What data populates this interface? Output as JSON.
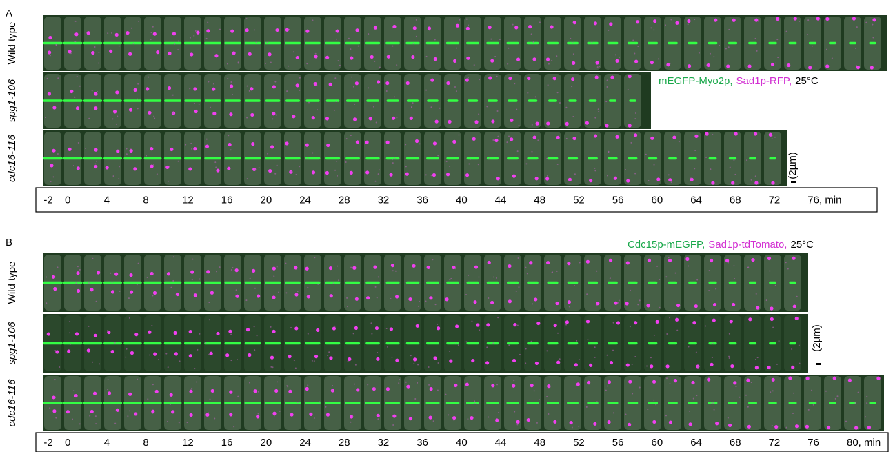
{
  "panels": [
    {
      "label": "A",
      "legend": [
        {
          "text": "mEGFP-Myo2p,",
          "color": "#19a84a"
        },
        {
          "text": "Sad1p-RFP,",
          "color": "#d22fd2"
        },
        {
          "text": "25°C",
          "color": "#000000"
        }
      ],
      "rows": [
        {
          "label": "Wild type",
          "italic": false
        },
        {
          "label": "spg1-106",
          "italic": true
        },
        {
          "label": "cdc16-116",
          "italic": true
        }
      ],
      "scale": "(2µm)",
      "time_labels": [
        "-2",
        "0",
        "4",
        "8",
        "12",
        "16",
        "20",
        "24",
        "28",
        "32",
        "36",
        "40",
        "44",
        "48",
        "52",
        "56",
        "60",
        "64",
        "68",
        "72",
        "76, min"
      ]
    },
    {
      "label": "B",
      "legend": [
        {
          "text": "Cdc15p-mEGFP,",
          "color": "#19a84a"
        },
        {
          "text": "Sad1p-tdTomato,",
          "color": "#d22fd2"
        },
        {
          "text": "25°C",
          "color": "#000000"
        }
      ],
      "rows": [
        {
          "label": "Wild type",
          "italic": false
        },
        {
          "label": "spg1-106",
          "italic": true
        },
        {
          "label": "cdc16-116",
          "italic": true
        }
      ],
      "scale": "(2µm)",
      "time_labels": [
        "-2",
        "0",
        "4",
        "8",
        "12",
        "16",
        "20",
        "24",
        "28",
        "32",
        "36",
        "40",
        "44",
        "48",
        "52",
        "56",
        "60",
        "64",
        "68",
        "72",
        "76",
        "80, min"
      ]
    }
  ]
}
